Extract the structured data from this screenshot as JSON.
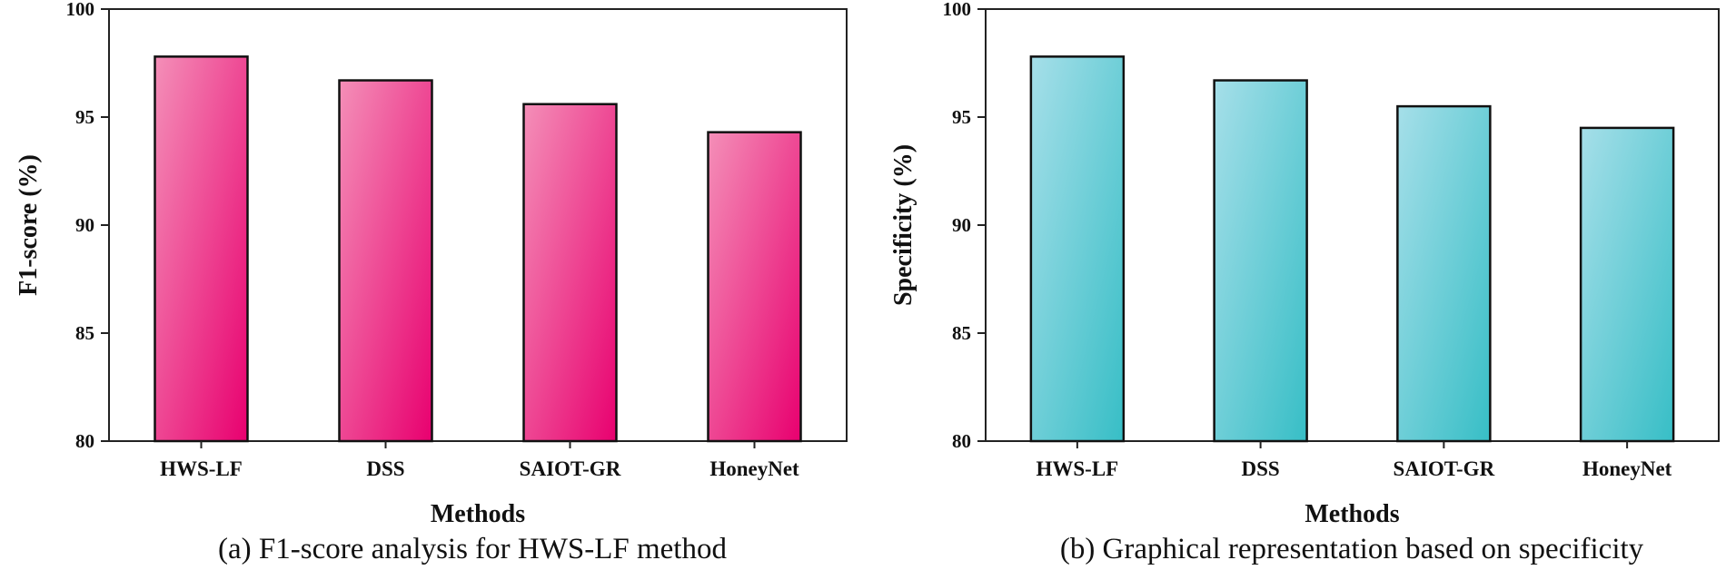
{
  "chart_data": [
    {
      "type": "bar",
      "title": "",
      "caption": "(a) F1-score analysis for HWS-LF method",
      "xlabel": "Methods",
      "ylabel": "F1-score (%)",
      "categories": [
        "HWS-LF",
        "DSS",
        "SAIOT-GR",
        "HoneyNet"
      ],
      "values": [
        97.8,
        96.7,
        95.6,
        94.3
      ],
      "ylim": [
        80,
        100
      ],
      "yticks": [
        80,
        85,
        90,
        95,
        100
      ],
      "grid": false,
      "legend": "none",
      "bar_color_light": "#f48fb8",
      "bar_color_dark": "#e8006f"
    },
    {
      "type": "bar",
      "title": "",
      "caption": "(b) Graphical representation based on specificity",
      "xlabel": "Methods",
      "ylabel": "Specificity (%)",
      "categories": [
        "HWS-LF",
        "DSS",
        "SAIOT-GR",
        "HoneyNet"
      ],
      "values": [
        97.8,
        96.7,
        95.5,
        94.5
      ],
      "ylim": [
        80,
        100
      ],
      "yticks": [
        80,
        85,
        90,
        95,
        100
      ],
      "grid": false,
      "legend": "none",
      "bar_color_light": "#a6dfe9",
      "bar_color_dark": "#37bec6"
    }
  ]
}
